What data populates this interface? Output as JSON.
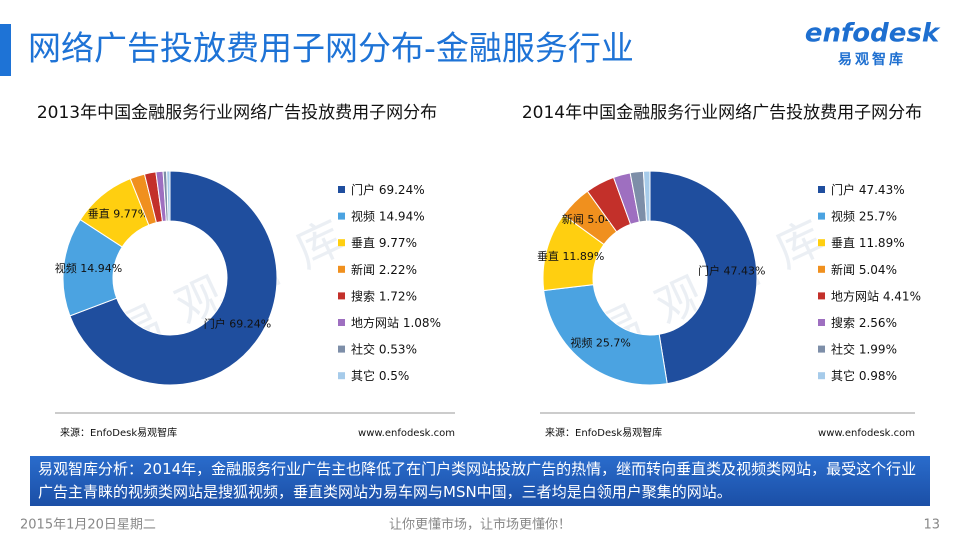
{
  "header": {
    "title": "网络广告投放费用子网分布-金融服务行业",
    "logo": "enfodesk",
    "logo_sub": "易观智库"
  },
  "watermark": "易观智库",
  "chart_data": [
    {
      "type": "donut",
      "title": "2013年中国金融服务行业网络广告投放费用子网分布",
      "categories": [
        "门户",
        "视频",
        "垂直",
        "新闻",
        "搜索",
        "地方网站",
        "社交",
        "其它"
      ],
      "values": [
        69.24,
        14.94,
        9.77,
        2.22,
        1.72,
        1.08,
        0.53,
        0.5
      ],
      "value_labels": [
        "69.24%",
        "14.94%",
        "9.77%",
        "2.22%",
        "1.72%",
        "1.08%",
        "0.53%",
        "0.5%"
      ],
      "colors": [
        "#1f4e9e",
        "#4ba3e1",
        "#ffcf10",
        "#f0901e",
        "#c3302a",
        "#9e6fc0",
        "#7d8ea8",
        "#a6cbea"
      ],
      "source": "来源：EnfoDesk易观智库",
      "site": "www.enfodesk.com"
    },
    {
      "type": "donut",
      "title": "2014年中国金融服务行业网络广告投放费用子网分布",
      "categories": [
        "门户",
        "视频",
        "垂直",
        "新闻",
        "地方网站",
        "搜索",
        "社交",
        "其它"
      ],
      "values": [
        47.43,
        25.7,
        11.89,
        5.04,
        4.41,
        2.56,
        1.99,
        0.98
      ],
      "value_labels": [
        "47.43%",
        "25.7%",
        "11.89%",
        "5.04%",
        "4.41%",
        "2.56%",
        "1.99%",
        "0.98%"
      ],
      "colors": [
        "#1f4e9e",
        "#4ba3e1",
        "#ffcf10",
        "#f0901e",
        "#c3302a",
        "#9e6fc0",
        "#7d8ea8",
        "#a6cbea"
      ],
      "source": "来源：EnfoDesk易观智库",
      "site": "www.enfodesk.com"
    }
  ],
  "analysis": "易观智库分析：2014年，金融服务行业广告主也降低了在门户类网站投放广告的热情，继而转向垂直类及视频类网站，最受这个行业广告主青睐的视频类网站是搜狐视频，垂直类网站为易车网与MSN中国，三者均是白领用户聚集的网站。",
  "footer": {
    "date": "2015年1月20日星期二",
    "slogan": "让你更懂市场，让市场更懂你！",
    "page": "13"
  }
}
